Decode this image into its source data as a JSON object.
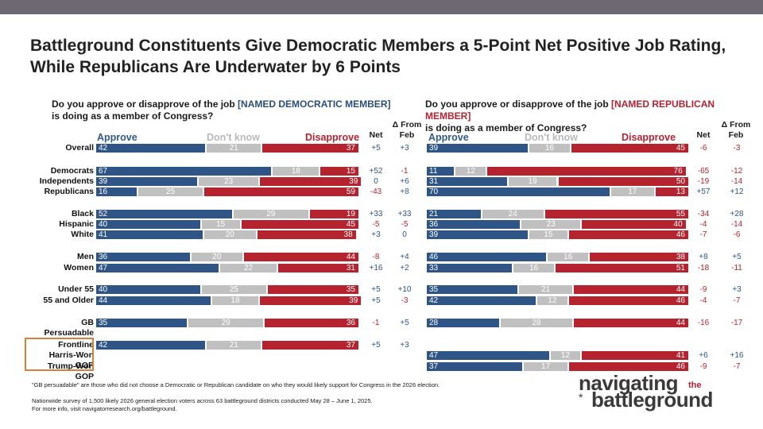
{
  "title": "Battleground Constituents Give Democratic Members a 5-Point Net Positive Job Rating, While Republicans Are Underwater by 6 Points",
  "headers": {
    "approve": "Approve",
    "dont_know": "Don't know",
    "disapprove": "Disapprove",
    "net": "Net",
    "change": "Δ From\nFeb"
  },
  "chart_data": [
    {
      "type": "bar",
      "stacked": true,
      "panel": "democratic",
      "question_prefix": "Do you approve or disapprove of the job",
      "question_named": "[NAMED DEMOCRATIC MEMBER]",
      "question_suffix": "is doing as a member of Congress?",
      "categories": [
        "Overall",
        "Democrats",
        "Independents",
        "Republicans",
        "Black",
        "Hispanic",
        "White",
        "Men",
        "Women",
        "Under 55",
        "55 and Older",
        "GB Persuadable",
        "Frontline"
      ],
      "series": [
        {
          "name": "Approve",
          "values": [
            42,
            67,
            39,
            16,
            52,
            40,
            41,
            36,
            47,
            40,
            44,
            35,
            42
          ]
        },
        {
          "name": "Don't know",
          "values": [
            21,
            18,
            23,
            25,
            29,
            15,
            20,
            20,
            22,
            25,
            18,
            29,
            21
          ]
        },
        {
          "name": "Disapprove",
          "values": [
            37,
            15,
            39,
            59,
            19,
            45,
            38,
            44,
            31,
            35,
            39,
            36,
            37
          ]
        }
      ],
      "net": [
        "+5",
        "+52",
        "0",
        "-43",
        "+33",
        "-5",
        "+3",
        "-8",
        "+16",
        "+5",
        "+5",
        "-1",
        "+5"
      ],
      "change_from_feb": [
        "+3",
        "-1",
        "+6",
        "+8",
        "+33",
        "-5",
        "0",
        "+4",
        "+2",
        "+10",
        "-3",
        "+5",
        "+3"
      ],
      "xlim": [
        0,
        100
      ]
    },
    {
      "type": "bar",
      "stacked": true,
      "panel": "republican",
      "question_prefix": "Do you approve or disapprove of the job",
      "question_named": "[NAMED REPUBLICAN MEMBER]",
      "question_suffix": "is doing as a member of Congress?",
      "categories": [
        "Overall",
        "Democrats",
        "Independents",
        "Republicans",
        "Black",
        "Hispanic",
        "White",
        "Men",
        "Women",
        "Under 55",
        "55 and Older",
        "GB Persuadable",
        "Harris-Won GOP",
        "Trump-Won GOP"
      ],
      "series": [
        {
          "name": "Approve",
          "values": [
            39,
            11,
            31,
            70,
            21,
            36,
            39,
            46,
            33,
            35,
            42,
            28,
            47,
            37
          ]
        },
        {
          "name": "Don't know",
          "values": [
            16,
            12,
            19,
            17,
            24,
            23,
            15,
            16,
            16,
            21,
            12,
            28,
            12,
            17
          ]
        },
        {
          "name": "Disapprove",
          "values": [
            45,
            76,
            50,
            13,
            55,
            40,
            46,
            38,
            51,
            44,
            46,
            44,
            41,
            46
          ]
        }
      ],
      "net": [
        "-6",
        "-65",
        "-19",
        "+57",
        "-34",
        "-4",
        "-7",
        "+8",
        "-18",
        "-9",
        "-4",
        "-16",
        "+6",
        "-9"
      ],
      "change_from_feb": [
        "-3",
        "-12",
        "-14",
        "+12",
        "+28",
        "-14",
        "-6",
        "+5",
        "-11",
        "+3",
        "-7",
        "-17",
        "+16",
        "-7"
      ],
      "xlim": [
        0,
        100
      ]
    }
  ],
  "row_labels": [
    "Overall",
    "Democrats",
    "Independents",
    "Republicans",
    "Black",
    "Hispanic",
    "White",
    "Men",
    "Women",
    "Under 55",
    "55 and Older",
    "GB Persuadable",
    "Frontline",
    "Harris-Won GOP",
    "Trump-Won GOP"
  ],
  "footnotes": {
    "line1": "\"GB persuadable\" are those who did not choose a Democratic or Republican candidate on who they would likely support for Congress in the 2026 election.",
    "line2": "Nationwide survey of 1,500 likely 2026 general election voters across 63 battleground districts conducted May 28 – June 1, 2025.",
    "line3": "For more info, visit navigatorresearch.org/battleground."
  },
  "logo": {
    "line1": "navigating",
    "the": "the",
    "line2": "battleground",
    "star": "*"
  },
  "colors": {
    "approve": "#2e5585",
    "dont_know": "#c0c0c0",
    "disapprove": "#b5232f",
    "topbar": "#6e6873",
    "highlight": "#d4803a"
  }
}
